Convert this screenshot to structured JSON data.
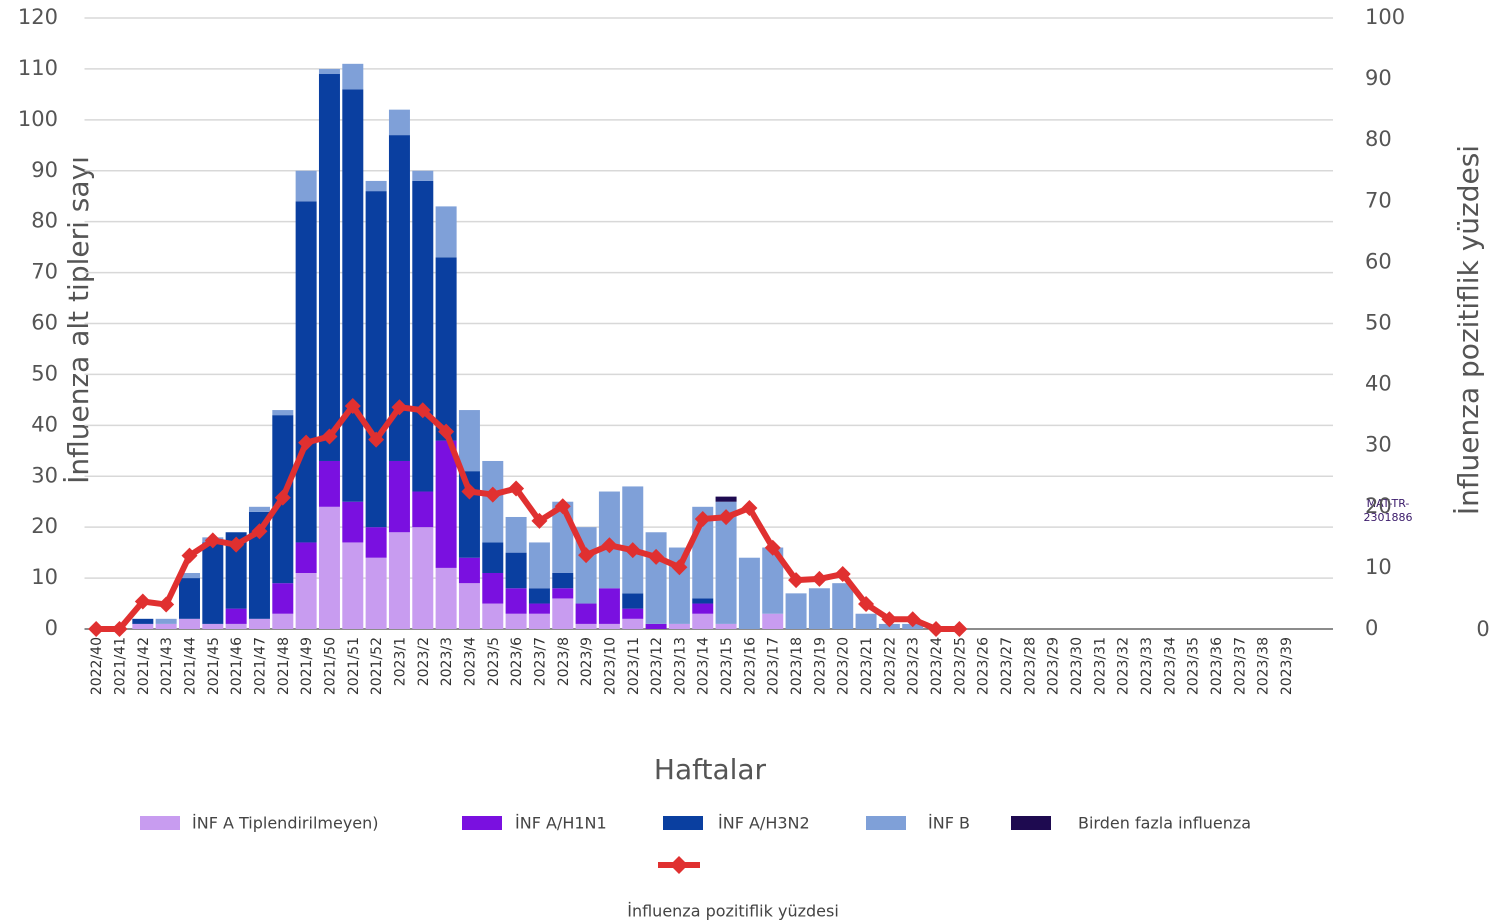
{
  "chart_data": {
    "type": "bar",
    "stacked": true,
    "x_label": "Haftalar",
    "y_label": "İnfluenza alt tipleri sayı",
    "y2_label": "İnfluenza pozitiflik yüzdesi",
    "annotations": [
      "MAT-TR-",
      "2301886",
      "0"
    ],
    "categories": [
      "2022/40",
      "2021/41",
      "2021/42",
      "2021/43",
      "2021/44",
      "2021/45",
      "2021/46",
      "2021/47",
      "2021/48",
      "2021/49",
      "2021/50",
      "2021/51",
      "2021/52",
      "2023/1",
      "2023/2",
      "2023/3",
      "2023/4",
      "2023/5",
      "2023/6",
      "2023/7",
      "2023/8",
      "2023/9",
      "2023/10",
      "2023/11",
      "2023/12",
      "2023/13",
      "2023/14",
      "2023/15",
      "2023/16",
      "2023/17",
      "2023/18",
      "2023/19",
      "2023/20",
      "2023/21",
      "2023/22",
      "2023/23",
      "2023/24",
      "2023/25",
      "2023/26",
      "2023/27",
      "2023/28",
      "2023/29",
      "2023/30",
      "2023/31",
      "2023/32",
      "2023/33",
      "2023/34",
      "2023/35",
      "2023/36",
      "2023/37",
      "2023/38",
      "2023/39"
    ],
    "series": [
      {
        "name": "İNF A Tiplendirilmeyen)",
        "type": "bar",
        "color": "#c89cf0",
        "values": [
          0,
          0,
          1,
          1,
          2,
          1,
          1,
          2,
          3,
          11,
          24,
          17,
          14,
          19,
          20,
          12,
          9,
          5,
          3,
          3,
          6,
          1,
          1,
          2,
          0,
          1,
          3,
          1,
          0,
          3,
          0,
          0,
          0,
          0,
          0,
          0,
          0,
          0,
          0,
          0,
          0,
          0,
          0,
          0,
          0,
          0,
          0,
          0,
          0,
          0,
          0,
          0
        ]
      },
      {
        "name": "İNF A/H1N1",
        "type": "bar",
        "color": "#7a10e0",
        "values": [
          0,
          0,
          0,
          0,
          0,
          0,
          3,
          0,
          6,
          6,
          9,
          8,
          6,
          14,
          7,
          25,
          5,
          6,
          5,
          2,
          2,
          4,
          7,
          2,
          1,
          0,
          2,
          0,
          0,
          0,
          0,
          0,
          0,
          0,
          0,
          0,
          0,
          0,
          0,
          0,
          0,
          0,
          0,
          0,
          0,
          0,
          0,
          0,
          0,
          0,
          0,
          0
        ]
      },
      {
        "name": "İNF A/H3N2",
        "type": "bar",
        "color": "#0a3fa0",
        "values": [
          0,
          0,
          1,
          0,
          8,
          16,
          15,
          21,
          33,
          67,
          76,
          81,
          66,
          64,
          61,
          36,
          17,
          6,
          7,
          3,
          3,
          0,
          0,
          3,
          0,
          0,
          1,
          0,
          0,
          0,
          0,
          0,
          0,
          0,
          0,
          0,
          0,
          0,
          0,
          0,
          0,
          0,
          0,
          0,
          0,
          0,
          0,
          0,
          0,
          0,
          0,
          0
        ]
      },
      {
        "name": "İNF B",
        "type": "bar",
        "color": "#7fa0d8",
        "values": [
          0,
          0,
          0,
          1,
          1,
          1,
          0,
          1,
          1,
          6,
          1,
          5,
          2,
          5,
          2,
          10,
          12,
          16,
          7,
          9,
          14,
          15,
          19,
          21,
          18,
          15,
          18,
          24,
          14,
          13,
          7,
          8,
          9,
          3,
          1,
          1,
          0,
          0,
          0,
          0,
          0,
          0,
          0,
          0,
          0,
          0,
          0,
          0,
          0,
          0,
          0,
          0
        ]
      },
      {
        "name": "Birden fazla influenza",
        "type": "bar",
        "color": "#1e0a50",
        "values": [
          0,
          0,
          0,
          0,
          0,
          0,
          0,
          0,
          0,
          0,
          0,
          0,
          0,
          0,
          0,
          0,
          0,
          0,
          0,
          0,
          0,
          0,
          0,
          0,
          0,
          0,
          0,
          1,
          0,
          0,
          0,
          0,
          0,
          0,
          0,
          0,
          0,
          0,
          0,
          0,
          0,
          0,
          0,
          0,
          0,
          0,
          0,
          0,
          0,
          0,
          0,
          0
        ]
      },
      {
        "name": "İnfluenza pozitiflik yüzdesi",
        "type": "line",
        "axis": "y2",
        "color": "#e03030",
        "values": [
          0,
          0,
          4.5,
          4,
          12,
          14.5,
          13.8,
          16,
          21.5,
          30.5,
          31.5,
          36.5,
          31,
          36.3,
          35.8,
          32.3,
          22.5,
          22,
          23,
          17.7,
          20.1,
          12.1,
          13.7,
          12.9,
          11.8,
          10.1,
          18,
          18.3,
          19.8,
          13.3,
          8,
          8.2,
          9,
          4.1,
          1.6,
          1.6,
          0,
          0,
          null,
          null,
          null,
          null,
          null,
          null,
          null,
          null,
          null,
          null,
          null,
          null,
          null,
          null
        ]
      }
    ],
    "ylim": [
      0,
      120
    ],
    "yticks": [
      0,
      10,
      20,
      30,
      40,
      50,
      60,
      70,
      80,
      90,
      100,
      110,
      120
    ],
    "y2lim": [
      0,
      100
    ],
    "y2ticks": [
      0,
      10,
      20,
      30,
      40,
      50,
      60,
      70,
      80,
      90,
      100
    ],
    "grid": true
  }
}
